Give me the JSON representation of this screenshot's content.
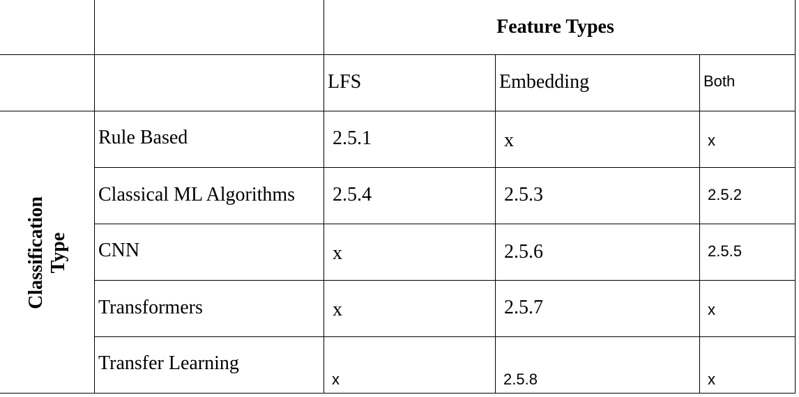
{
  "table": {
    "header_title": "Feature Types",
    "row_group_label_line1": "Classification",
    "row_group_label_line2": "Type",
    "columns": [
      "LFS",
      "Embedding",
      "Both"
    ],
    "rows": [
      {
        "label": "Rule Based",
        "cells": [
          "2.5.1",
          "x",
          "x"
        ]
      },
      {
        "label": "Classical ML Algorithms",
        "cells": [
          "2.5.4",
          "2.5.3",
          "2.5.2"
        ]
      },
      {
        "label": "CNN",
        "cells": [
          "x",
          "2.5.6",
          "2.5.5"
        ]
      },
      {
        "label": "Transformers",
        "cells": [
          "x",
          "2.5.7",
          "x"
        ]
      },
      {
        "label": "Transfer Learning",
        "cells": [
          "x",
          "2.5.8",
          "x"
        ]
      }
    ]
  }
}
